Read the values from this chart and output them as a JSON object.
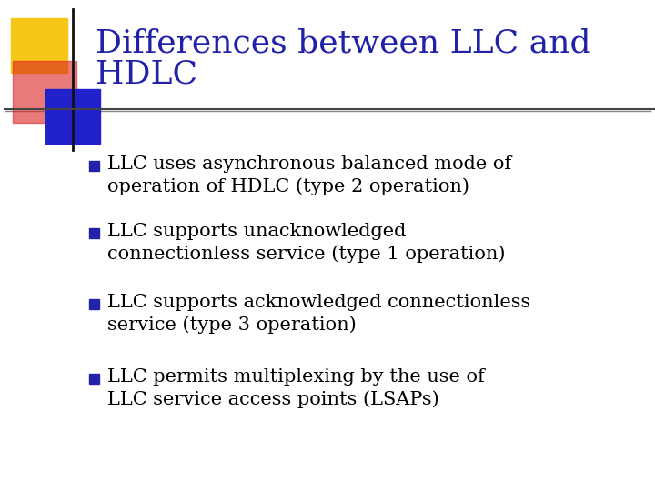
{
  "title_line1": "Differences between LLC and",
  "title_line2": "HDLC",
  "title_color": "#2020aa",
  "title_fontsize": 26,
  "background_color": "#ffffff",
  "bullet_square_color": "#2222aa",
  "text_color": "#000000",
  "bullets": [
    [
      "LLC uses asynchronous balanced mode of",
      "operation of HDLC (type 2 operation)"
    ],
    [
      "LLC supports unacknowledged",
      "connectionless service (type 1 operation)"
    ],
    [
      "LLC supports acknowledged connectionless",
      "service (type 3 operation)"
    ],
    [
      "LLC permits multiplexing by the use of",
      "LLC service access points (LSAPs)"
    ]
  ],
  "bullet_fontsize": 15,
  "logo_yellow_color": "#f5c518",
  "logo_red_color": "#dd2222",
  "logo_blue_color": "#2222cc",
  "line_color": "#444444"
}
